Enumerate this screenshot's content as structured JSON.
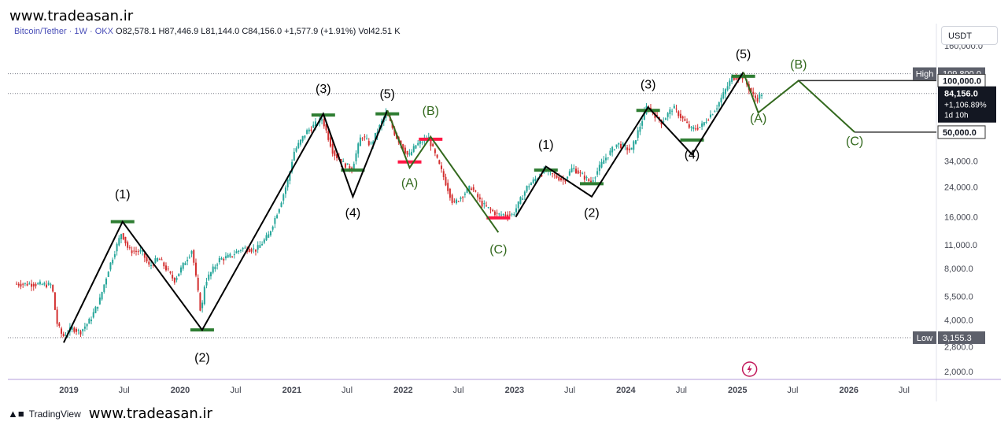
{
  "watermark_top": "www.tradeasan.ir",
  "watermark_bottom": "www.tradeasan.ir",
  "header": {
    "symbol": "Bitcoin/Tether · 1W · OKX",
    "open_label": "O",
    "open": "82,578.1",
    "high_label": "H",
    "high": "87,446.9",
    "low_label": "L",
    "low": "81,144.0",
    "close_label": "C",
    "close": "84,156.0",
    "change": "+1,577.9 (+1.91%)",
    "volume_label": "Vol",
    "volume": "42.51 K"
  },
  "currency_button": "USDT",
  "footer_brand": "TradingView",
  "colors": {
    "up": "#26a69a",
    "down": "#d32f2f",
    "wave_black": "#000000",
    "wave_green": "#33691e",
    "level_green": "#2e7d32",
    "level_red": "#ff1744",
    "axis_text": "#434651",
    "grid_dotted": "#787b86",
    "price_label_bg": "#131722",
    "time_axis_line": "#b39ddb"
  },
  "chart_data": {
    "type": "candlestick",
    "symbol": "Bitcoin/Tether",
    "interval": "1W",
    "exchange": "OKX",
    "y_scale": "log",
    "ylim": [
      1800,
      160000
    ],
    "xlim": [
      "2018-06-15",
      "2026-10-15"
    ],
    "y_ticks": [
      {
        "v": 2000,
        "label": "2,000.0"
      },
      {
        "v": 2800,
        "label": "2,800.0"
      },
      {
        "v": 4000,
        "label": "4,000.0"
      },
      {
        "v": 5500,
        "label": "5,500.0"
      },
      {
        "v": 8000,
        "label": "8,000.0"
      },
      {
        "v": 11000,
        "label": "11,000.0"
      },
      {
        "v": 16000,
        "label": "16,000.0"
      },
      {
        "v": 24000,
        "label": "24,000.0"
      },
      {
        "v": 34000,
        "label": "34,000.0"
      },
      {
        "v": 160000,
        "label": "160,000.0"
      }
    ],
    "x_ticks": [
      {
        "d": "2019-01-01",
        "label": "2019",
        "bold": true
      },
      {
        "d": "2019-07-01",
        "label": "Jul",
        "bold": false
      },
      {
        "d": "2020-01-01",
        "label": "2020",
        "bold": true
      },
      {
        "d": "2020-07-01",
        "label": "Jul",
        "bold": false
      },
      {
        "d": "2021-01-01",
        "label": "2021",
        "bold": true
      },
      {
        "d": "2021-07-01",
        "label": "Jul",
        "bold": false
      },
      {
        "d": "2022-01-01",
        "label": "2022",
        "bold": true
      },
      {
        "d": "2022-07-01",
        "label": "Jul",
        "bold": false
      },
      {
        "d": "2023-01-01",
        "label": "2023",
        "bold": true
      },
      {
        "d": "2023-07-01",
        "label": "Jul",
        "bold": false
      },
      {
        "d": "2024-01-01",
        "label": "2024",
        "bold": true
      },
      {
        "d": "2024-07-01",
        "label": "Jul",
        "bold": false
      },
      {
        "d": "2025-01-01",
        "label": "2025",
        "bold": true
      },
      {
        "d": "2025-07-01",
        "label": "Jul",
        "bold": false
      },
      {
        "d": "2026-01-01",
        "label": "2026",
        "bold": true
      },
      {
        "d": "2026-07-01",
        "label": "Jul",
        "bold": false
      }
    ],
    "price_path": [
      [
        "2018-07-10",
        6500
      ],
      [
        "2018-09-01",
        6500
      ],
      [
        "2018-11-10",
        6400
      ],
      [
        "2018-11-25",
        3900
      ],
      [
        "2018-12-15",
        3200
      ],
      [
        "2019-01-15",
        3600
      ],
      [
        "2019-02-10",
        3400
      ],
      [
        "2019-03-15",
        4000
      ],
      [
        "2019-04-15",
        5200
      ],
      [
        "2019-05-15",
        8000
      ],
      [
        "2019-06-26",
        13000
      ],
      [
        "2019-07-20",
        10200
      ],
      [
        "2019-09-01",
        10000
      ],
      [
        "2019-09-25",
        8200
      ],
      [
        "2019-10-26",
        9200
      ],
      [
        "2019-12-16",
        6800
      ],
      [
        "2020-02-12",
        10300
      ],
      [
        "2020-03-13",
        4300
      ],
      [
        "2020-03-25",
        6600
      ],
      [
        "2020-05-10",
        9000
      ],
      [
        "2020-06-15",
        9400
      ],
      [
        "2020-07-25",
        10500
      ],
      [
        "2020-09-10",
        10300
      ],
      [
        "2020-10-20",
        12500
      ],
      [
        "2020-11-25",
        18500
      ],
      [
        "2020-12-25",
        27000
      ],
      [
        "2021-01-10",
        38000
      ],
      [
        "2021-02-20",
        50000
      ],
      [
        "2021-04-14",
        60000
      ],
      [
        "2021-05-20",
        38000
      ],
      [
        "2021-06-20",
        33000
      ],
      [
        "2021-07-20",
        30500
      ],
      [
        "2021-08-20",
        48000
      ],
      [
        "2021-09-20",
        42000
      ],
      [
        "2021-11-10",
        65000
      ],
      [
        "2021-12-10",
        48000
      ],
      [
        "2022-01-22",
        36000
      ],
      [
        "2022-02-15",
        42000
      ],
      [
        "2022-03-28",
        46500
      ],
      [
        "2022-05-12",
        29000
      ],
      [
        "2022-06-18",
        19000
      ],
      [
        "2022-08-15",
        24000
      ],
      [
        "2022-09-20",
        19000
      ],
      [
        "2022-11-09",
        16500
      ],
      [
        "2022-12-30",
        16500
      ],
      [
        "2023-02-15",
        24000
      ],
      [
        "2023-04-14",
        30000
      ],
      [
        "2023-06-15",
        26000
      ],
      [
        "2023-07-14",
        31000
      ],
      [
        "2023-09-11",
        25500
      ],
      [
        "2023-10-25",
        34500
      ],
      [
        "2023-12-08",
        43000
      ],
      [
        "2024-01-22",
        39000
      ],
      [
        "2024-03-14",
        71000
      ],
      [
        "2024-05-01",
        57000
      ],
      [
        "2024-06-07",
        70000
      ],
      [
        "2024-08-05",
        52000
      ],
      [
        "2024-09-07",
        54000
      ],
      [
        "2024-10-28",
        70000
      ],
      [
        "2024-12-17",
        104000
      ],
      [
        "2025-01-20",
        106000
      ],
      [
        "2025-02-28",
        80000
      ],
      [
        "2025-03-10",
        78000
      ],
      [
        "2025-03-25",
        84156
      ]
    ],
    "high": {
      "label": "High",
      "value": "109,800.0",
      "v": 109800,
      "date": "2025-01-20"
    },
    "low": {
      "label": "Low",
      "value": "3,155.3",
      "v": 3155.3,
      "date": "2018-12-15"
    },
    "price_labels": [
      {
        "v": 100000,
        "text": "100,000.0",
        "style": "box"
      },
      {
        "v": 84156,
        "text": "84,156.0",
        "line2": "+1,106.89%",
        "line3": "1d 10h",
        "style": "dark"
      },
      {
        "v": 50000,
        "text": "50,000.0",
        "style": "box"
      }
    ],
    "waves_black": [
      [
        [
          "2018-12-15",
          2950
        ],
        [
          "2019-06-26",
          15000
        ],
        [
          "2020-03-13",
          3500
        ],
        [
          "2021-04-14",
          64000
        ],
        [
          "2021-07-20",
          21000
        ],
        [
          "2021-11-10",
          67000
        ]
      ],
      [
        [
          "2023-01-05",
          16000
        ],
        [
          "2023-04-14",
          31500
        ],
        [
          "2023-09-11",
          21000
        ],
        [
          "2024-03-14",
          70000
        ],
        [
          "2024-08-05",
          37000
        ],
        [
          "2025-01-20",
          112000
        ]
      ]
    ],
    "waves_green": [
      [
        [
          "2021-11-10",
          67000
        ],
        [
          "2022-01-22",
          31000
        ],
        [
          "2022-04-01",
          47000
        ],
        [
          "2022-11-09",
          13000
        ]
      ],
      [
        [
          "2025-01-20",
          112000
        ],
        [
          "2025-03-10",
          65000
        ],
        [
          "2025-07-20",
          100000
        ],
        [
          "2026-01-20",
          50000
        ]
      ]
    ],
    "hlines": [
      {
        "d1": "2025-07-20",
        "d2": "2026-10-15",
        "v": 100000
      },
      {
        "d1": "2026-01-20",
        "d2": "2026-10-15",
        "v": 50000
      }
    ],
    "level_marks": [
      {
        "d": "2019-06-26",
        "v": 15000,
        "color": "green"
      },
      {
        "d": "2020-03-13",
        "v": 3500,
        "color": "green"
      },
      {
        "d": "2021-04-14",
        "v": 63000,
        "color": "green"
      },
      {
        "d": "2021-07-20",
        "v": 30000,
        "color": "green"
      },
      {
        "d": "2021-11-10",
        "v": 64000,
        "color": "green"
      },
      {
        "d": "2022-01-22",
        "v": 33500,
        "color": "red"
      },
      {
        "d": "2022-04-01",
        "v": 45500,
        "color": "red"
      },
      {
        "d": "2022-11-09",
        "v": 15800,
        "color": "red"
      },
      {
        "d": "2023-04-14",
        "v": 30000,
        "color": "green"
      },
      {
        "d": "2023-09-11",
        "v": 25000,
        "color": "green"
      },
      {
        "d": "2024-03-14",
        "v": 67000,
        "color": "green"
      },
      {
        "d": "2024-08-05",
        "v": 45000,
        "color": "green"
      },
      {
        "d": "2025-01-20",
        "v": 106000,
        "color": "green"
      }
    ],
    "wave_labels": [
      {
        "text": "(1)",
        "d": "2019-06-26",
        "v": 20500,
        "color": "black"
      },
      {
        "text": "(2)",
        "d": "2020-03-13",
        "v": 2280,
        "color": "black"
      },
      {
        "text": "(3)",
        "d": "2021-04-14",
        "v": 85000,
        "color": "black"
      },
      {
        "text": "(4)",
        "d": "2021-07-20",
        "v": 16000,
        "color": "black"
      },
      {
        "text": "(5)",
        "d": "2021-11-10",
        "v": 79000,
        "color": "black"
      },
      {
        "text": "(A)",
        "d": "2022-01-22",
        "v": 24000,
        "color": "green"
      },
      {
        "text": "(B)",
        "d": "2022-04-01",
        "v": 63000,
        "color": "green"
      },
      {
        "text": "(C)",
        "d": "2022-11-09",
        "v": 9800,
        "color": "green"
      },
      {
        "text": "(1)",
        "d": "2023-04-14",
        "v": 40000,
        "color": "black"
      },
      {
        "text": "(2)",
        "d": "2023-09-11",
        "v": 16000,
        "color": "black"
      },
      {
        "text": "(3)",
        "d": "2024-03-14",
        "v": 90000,
        "color": "black"
      },
      {
        "text": "(4)",
        "d": "2024-08-05",
        "v": 35000,
        "color": "black"
      },
      {
        "text": "(5)",
        "d": "2025-01-20",
        "v": 135000,
        "color": "black"
      },
      {
        "text": "(A)",
        "d": "2025-03-10",
        "v": 57000,
        "color": "green"
      },
      {
        "text": "(B)",
        "d": "2025-07-20",
        "v": 118000,
        "color": "green"
      },
      {
        "text": "(C)",
        "d": "2026-01-20",
        "v": 42000,
        "color": "green"
      }
    ],
    "grid": false
  }
}
